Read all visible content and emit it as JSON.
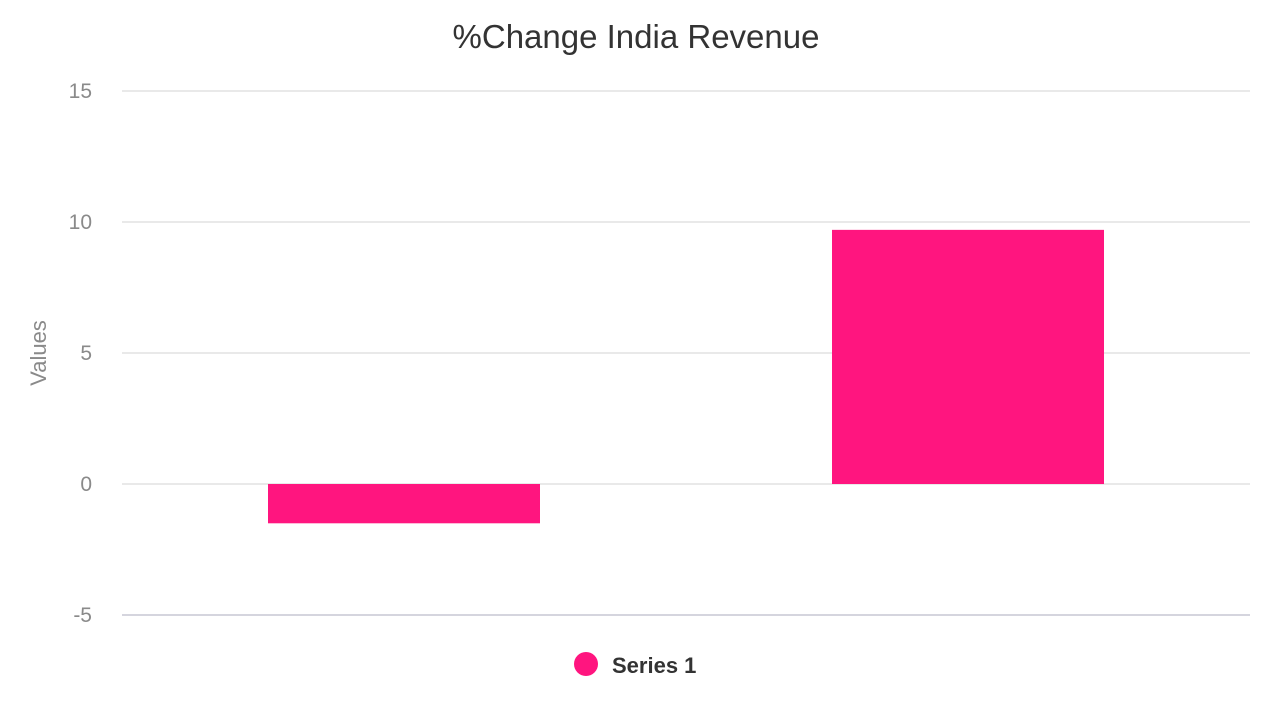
{
  "chart_data": {
    "type": "bar",
    "title": "%Change India Revenue",
    "ylabel": "Values",
    "categories": [
      "",
      ""
    ],
    "series": [
      {
        "name": "Series 1",
        "values": [
          -1.5,
          9.7
        ],
        "color": "#ff157f"
      }
    ],
    "ylim": [
      -5,
      15
    ],
    "yticks": [
      15,
      10,
      5,
      0,
      -5
    ],
    "ytick_labels": [
      "15",
      "10",
      "5",
      "0",
      "-5"
    ],
    "grid": true,
    "legend_position": "bottom-center"
  }
}
